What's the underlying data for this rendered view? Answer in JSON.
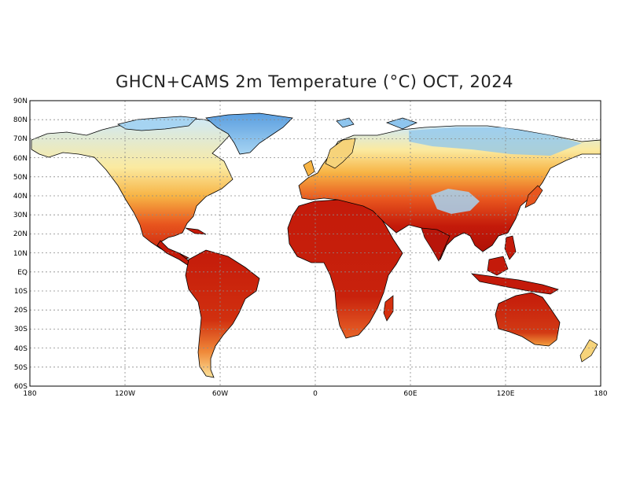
{
  "title": "GHCN+CAMS 2m Temperature (°C) OCT, 2024",
  "lat_labels": [
    "90N",
    "80N",
    "70N",
    "60N",
    "50N",
    "40N",
    "30N",
    "20N",
    "10N",
    "EQ",
    "10S",
    "20S",
    "30S",
    "40S",
    "50S",
    "60S"
  ],
  "lon_labels": [
    "180",
    "120W",
    "60W",
    "0",
    "60E",
    "120E",
    "180"
  ],
  "colors": {
    "very_cold": "#4a90d9",
    "cold": "#8ec5ee",
    "cool": "#cfe9f7",
    "mild": "#fbeaa0",
    "warm": "#f7b445",
    "hot": "#e8561e",
    "very_hot": "#c41a0a",
    "extreme": "#a90e05",
    "grid": "#8a8a8a",
    "coast": "#000000"
  }
}
